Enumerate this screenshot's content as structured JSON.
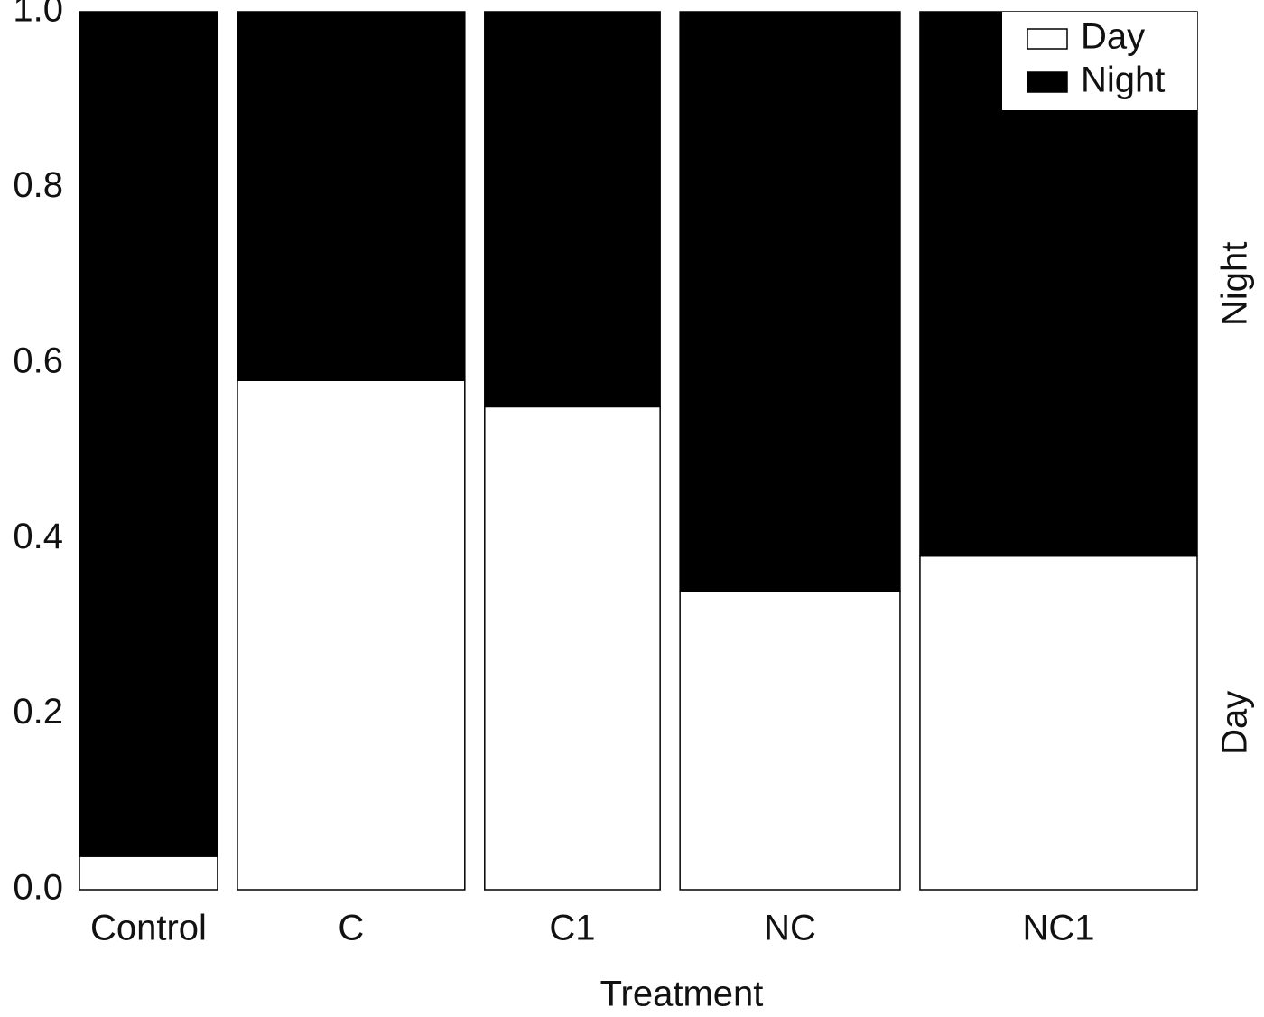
{
  "chart_data": {
    "type": "spineplot",
    "x_label": "Treatment",
    "categories": [
      "Control",
      "C",
      "C1",
      "NC",
      "NC1"
    ],
    "widths": [
      0.133,
      0.219,
      0.169,
      0.212,
      0.267
    ],
    "series": [
      {
        "name": "Day",
        "color": "#ffffff",
        "values": [
          0.038,
          0.58,
          0.55,
          0.34,
          0.38
        ]
      },
      {
        "name": "Night",
        "color": "#000000",
        "values": [
          0.962,
          0.42,
          0.45,
          0.66,
          0.62
        ]
      }
    ],
    "ylim": [
      0,
      1
    ],
    "yticks": [
      {
        "value": 0,
        "label": "0.0"
      },
      0.2,
      0.4,
      0.6,
      0.8,
      {
        "value": 1,
        "label": "1.0"
      }
    ],
    "legend": "top-right"
  }
}
